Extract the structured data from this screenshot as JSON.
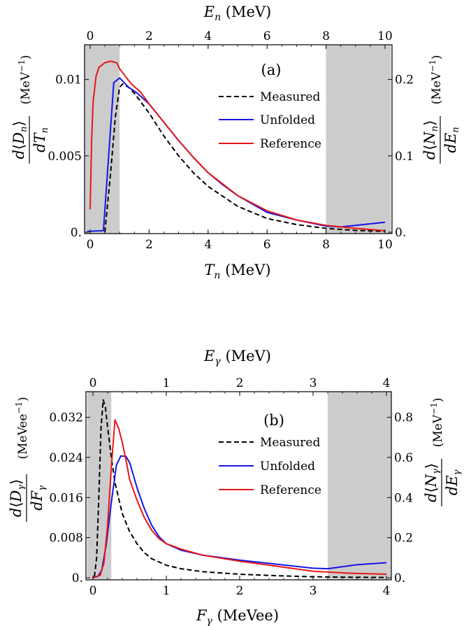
{
  "chart_data": [
    {
      "type": "line",
      "panel_label": "(a)",
      "xlabel": "T_n (MeV)",
      "xlabel_top": "E_n (MeV)",
      "ylabel_left": "d⟨D_n⟩/dT_n (MeV⁻¹)",
      "ylabel_right": "d⟨N_n⟩/dE_n (MeV⁻¹)",
      "xlim": [
        0,
        10
      ],
      "ylim_left": [
        0,
        0.012
      ],
      "ylim_right": [
        0,
        0.24
      ],
      "x_ticks": [
        "0",
        "2",
        "4",
        "6",
        "8",
        "10"
      ],
      "x_ticks_top": [
        "0",
        "2",
        "4",
        "6",
        "8",
        "10"
      ],
      "y_ticks_left": [
        "0.",
        "0.005",
        "0.01"
      ],
      "y_ticks_right": [
        "0.",
        "0.1",
        "0.2"
      ],
      "shaded_regions": [
        [
          -0.2,
          1.0
        ],
        [
          8.0,
          10.2
        ]
      ],
      "legend_position": "upper-right",
      "series": [
        {
          "name": "Measured",
          "color": "#000000",
          "dash": "dashed",
          "x": [
            0.5,
            0.7,
            0.85,
            1.0,
            1.1,
            1.3,
            1.5,
            2.0,
            2.5,
            3.0,
            3.5,
            4.0,
            5.0,
            6.0,
            7.0,
            8.0,
            9.0,
            10.0
          ],
          "y": [
            0.0,
            0.004,
            0.0075,
            0.0095,
            0.0097,
            0.0095,
            0.0091,
            0.0078,
            0.0063,
            0.005,
            0.0039,
            0.003,
            0.0017,
            0.0009,
            0.0005,
            0.00025,
            0.00012,
            5e-05
          ]
        },
        {
          "name": "Unfolded",
          "color": "#1515e6",
          "dash": "solid",
          "x": [
            -0.1,
            0.45,
            0.8,
            1.0,
            1.1,
            1.3,
            1.6,
            2.0,
            2.5,
            3.0,
            3.5,
            4.0,
            4.5,
            5.0,
            6.0,
            7.0,
            8.0,
            8.5,
            9.0,
            9.5,
            10.0
          ],
          "y": [
            5e-05,
            0.0001,
            0.0098,
            0.0101,
            0.0099,
            0.0095,
            0.0091,
            0.0084,
            0.0072,
            0.006,
            0.0049,
            0.0039,
            0.0031,
            0.0024,
            0.0013,
            0.0008,
            0.0004,
            0.00035,
            0.00045,
            0.00055,
            0.00065
          ]
        },
        {
          "name": "Reference",
          "color": "#e81616",
          "dash": "solid",
          "x": [
            0.0,
            0.05,
            0.1,
            0.2,
            0.3,
            0.5,
            0.7,
            0.9,
            1.0,
            1.2,
            1.4,
            1.7,
            2.0,
            2.5,
            3.0,
            3.5,
            4.0,
            5.0,
            6.0,
            7.0,
            8.0,
            9.0,
            10.0
          ],
          "y": [
            0.0015,
            0.006,
            0.0085,
            0.0102,
            0.0108,
            0.0111,
            0.0112,
            0.0111,
            0.0107,
            0.0102,
            0.0097,
            0.0092,
            0.0084,
            0.0072,
            0.006,
            0.0049,
            0.0039,
            0.0024,
            0.0014,
            0.0008,
            0.00045,
            0.00025,
            0.0001
          ]
        }
      ]
    },
    {
      "type": "line",
      "panel_label": "(b)",
      "xlabel": "F_γ (MeVee)",
      "xlabel_top": "E_γ (MeV)",
      "ylabel_left": "d⟨D_γ⟩/dF_γ (MeVee⁻¹)",
      "ylabel_right": "d⟨N_γ⟩/dE_γ (MeV⁻¹)",
      "xlim": [
        0,
        4
      ],
      "ylim_left": [
        0,
        0.036
      ],
      "ylim_right": [
        0,
        0.9
      ],
      "x_ticks": [
        "0",
        "1",
        "2",
        "3",
        "4"
      ],
      "x_ticks_top": [
        "0",
        "1",
        "2",
        "3",
        "4"
      ],
      "y_ticks_left": [
        "0.",
        "0.008",
        "0.016",
        "0.024",
        "0.032"
      ],
      "y_ticks_right": [
        "0.",
        "0.2",
        "0.4",
        "0.6",
        "0.8"
      ],
      "shaded_regions": [
        [
          -0.08,
          0.25
        ],
        [
          3.2,
          4.08
        ]
      ],
      "legend_position": "upper-right",
      "series": [
        {
          "name": "Measured",
          "color": "#000000",
          "dash": "dashed",
          "x": [
            0.02,
            0.05,
            0.08,
            0.11,
            0.14,
            0.17,
            0.2,
            0.25,
            0.3,
            0.4,
            0.5,
            0.6,
            0.7,
            0.8,
            1.0,
            1.2,
            1.5,
            2.0,
            2.5,
            3.0,
            3.5,
            4.0
          ],
          "y": [
            0.0002,
            0.004,
            0.016,
            0.03,
            0.0355,
            0.034,
            0.03,
            0.024,
            0.019,
            0.0128,
            0.0092,
            0.0068,
            0.005,
            0.0038,
            0.0025,
            0.0018,
            0.0012,
            0.0007,
            0.0004,
            0.0002,
            0.0001,
            5e-05
          ]
        },
        {
          "name": "Unfolded",
          "color": "#1515e6",
          "dash": "solid",
          "x": [
            0.0,
            0.07,
            0.12,
            0.18,
            0.25,
            0.32,
            0.38,
            0.45,
            0.5,
            0.6,
            0.7,
            0.8,
            0.9,
            1.0,
            1.2,
            1.5,
            2.0,
            2.5,
            3.0,
            3.2,
            3.4,
            3.6,
            4.0
          ],
          "y": [
            0.0,
            0.0003,
            0.0015,
            0.0065,
            0.015,
            0.0225,
            0.0243,
            0.0242,
            0.023,
            0.018,
            0.0138,
            0.0105,
            0.0082,
            0.0068,
            0.0055,
            0.0045,
            0.0035,
            0.0027,
            0.0019,
            0.0018,
            0.0022,
            0.0026,
            0.003
          ]
        },
        {
          "name": "Reference",
          "color": "#e81616",
          "dash": "solid",
          "x": [
            0.0,
            0.1,
            0.15,
            0.2,
            0.25,
            0.3,
            0.35,
            0.4,
            0.45,
            0.5,
            0.6,
            0.7,
            0.8,
            0.9,
            1.0,
            1.2,
            1.5,
            2.0,
            2.5,
            3.0,
            3.5,
            4.0
          ],
          "y": [
            0.0,
            0.0005,
            0.003,
            0.0105,
            0.022,
            0.0315,
            0.0298,
            0.027,
            0.0235,
            0.0196,
            0.0155,
            0.012,
            0.0095,
            0.0078,
            0.0068,
            0.0057,
            0.0045,
            0.0033,
            0.0023,
            0.0013,
            0.0009,
            0.0007
          ]
        }
      ]
    }
  ]
}
